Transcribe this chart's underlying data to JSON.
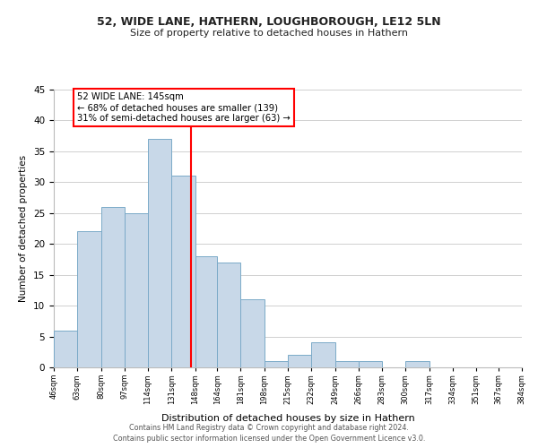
{
  "title": "52, WIDE LANE, HATHERN, LOUGHBOROUGH, LE12 5LN",
  "subtitle": "Size of property relative to detached houses in Hathern",
  "xlabel": "Distribution of detached houses by size in Hathern",
  "ylabel": "Number of detached properties",
  "bin_edges": [
    46,
    63,
    80,
    97,
    114,
    131,
    148,
    164,
    181,
    198,
    215,
    232,
    249,
    266,
    283,
    300,
    317,
    334,
    351,
    367,
    384
  ],
  "counts": [
    6,
    22,
    26,
    25,
    37,
    31,
    18,
    17,
    11,
    1,
    2,
    4,
    1,
    1,
    0,
    1,
    0,
    0,
    0,
    0
  ],
  "bar_color": "#c8d8e8",
  "bar_edgecolor": "#7baac8",
  "property_line_x": 145,
  "property_line_color": "red",
  "ylim": [
    0,
    45
  ],
  "annotation_text": "52 WIDE LANE: 145sqm\n← 68% of detached houses are smaller (139)\n31% of semi-detached houses are larger (63) →",
  "annotation_box_edgecolor": "red",
  "annotation_box_facecolor": "white",
  "footer_line1": "Contains HM Land Registry data © Crown copyright and database right 2024.",
  "footer_line2": "Contains public sector information licensed under the Open Government Licence v3.0.",
  "tick_labels": [
    "46sqm",
    "63sqm",
    "80sqm",
    "97sqm",
    "114sqm",
    "131sqm",
    "148sqm",
    "164sqm",
    "181sqm",
    "198sqm",
    "215sqm",
    "232sqm",
    "249sqm",
    "266sqm",
    "283sqm",
    "300sqm",
    "317sqm",
    "334sqm",
    "351sqm",
    "367sqm",
    "384sqm"
  ],
  "grid_color": "#d0d0d0",
  "background_color": "#ffffff"
}
